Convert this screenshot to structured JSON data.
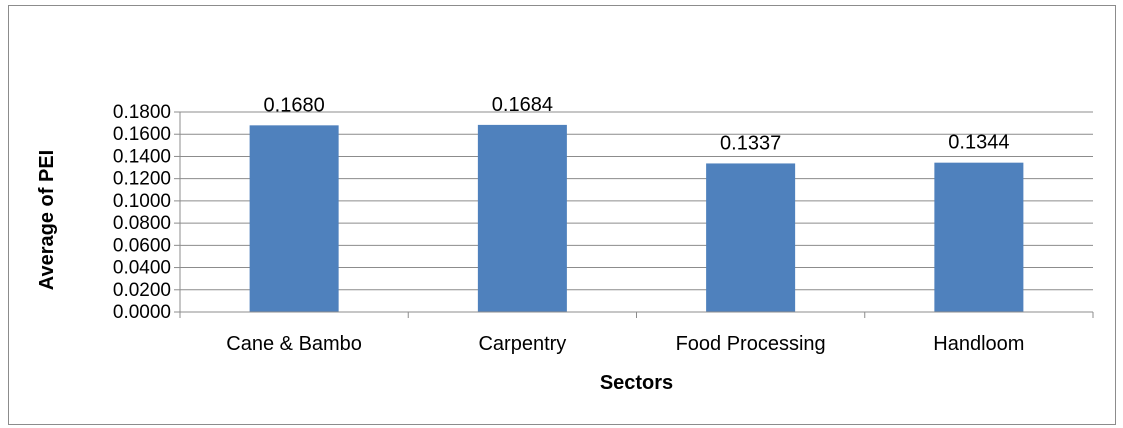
{
  "chart_data": {
    "type": "bar",
    "title": "",
    "xlabel": "Sectors",
    "ylabel": "Average of PEI",
    "categories": [
      "Cane & Bambo",
      "Carpentry",
      "Food Processing",
      "Handloom"
    ],
    "values": [
      0.168,
      0.1684,
      0.1337,
      0.1344
    ],
    "data_labels": [
      "0.1680",
      "0.1684",
      "0.1337",
      "0.1344"
    ],
    "ylim": [
      0,
      0.18
    ],
    "yticks": [
      "0.0000",
      "0.0200",
      "0.0400",
      "0.0600",
      "0.0800",
      "0.1000",
      "0.1200",
      "0.1400",
      "0.1600",
      "0.1800"
    ],
    "grid": true,
    "legend": "none",
    "bar_color": "#4f81bd",
    "grid_color": "#8c8c8c"
  }
}
